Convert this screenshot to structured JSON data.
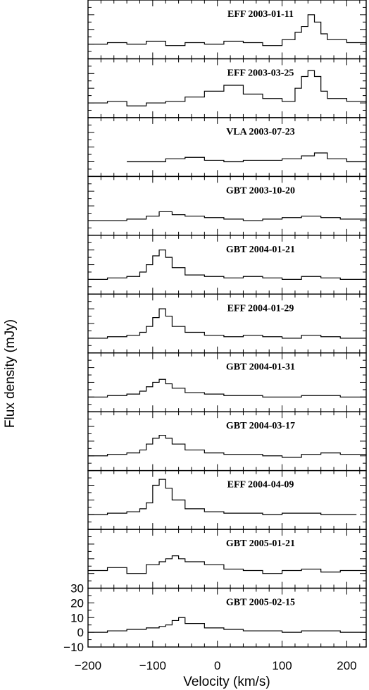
{
  "chart_data": {
    "type": "line",
    "xlabel": "Velocity (km/s)",
    "ylabel": "Flux density (mJy)",
    "xlim": [
      -200,
      230
    ],
    "xticks": [
      "−200",
      "−100",
      "0",
      "100",
      "200"
    ],
    "xtick_values": [
      -200,
      -100,
      0,
      100,
      200
    ],
    "ylim": [
      -10,
      30
    ],
    "yticks": [
      "30",
      "20",
      "10",
      "0",
      "−10"
    ],
    "ytick_values": [
      30,
      20,
      10,
      0,
      -10
    ],
    "style": "step",
    "grid": false,
    "panels": [
      {
        "label": "EFF 2003-01-11",
        "x": [
          -200,
          -170,
          -140,
          -110,
          -80,
          -50,
          -20,
          10,
          40,
          70,
          100,
          120,
          130,
          140,
          150,
          160,
          170,
          200,
          230
        ],
        "y": [
          0,
          1,
          0,
          2,
          -1,
          1,
          0,
          2,
          1,
          -1,
          3,
          8,
          12,
          20,
          15,
          7,
          3,
          1,
          0
        ]
      },
      {
        "label": "EFF 2003-03-25",
        "x": [
          -200,
          -170,
          -140,
          -110,
          -80,
          -50,
          -20,
          10,
          40,
          70,
          100,
          120,
          130,
          140,
          150,
          160,
          170,
          200,
          230
        ],
        "y": [
          0,
          1,
          -2,
          0,
          1,
          4,
          8,
          12,
          6,
          3,
          1,
          10,
          18,
          22,
          18,
          8,
          3,
          1,
          0
        ]
      },
      {
        "label": "VLA 2003-07-23",
        "x": [
          -140,
          -110,
          -80,
          -50,
          -20,
          10,
          40,
          70,
          100,
          130,
          150,
          170,
          200,
          230
        ],
        "y": [
          0,
          0,
          2,
          3,
          1,
          0,
          1,
          1,
          2,
          4,
          6,
          2,
          0,
          0
        ]
      },
      {
        "label": "GBT 2003-10-20",
        "x": [
          -200,
          -170,
          -140,
          -110,
          -90,
          -70,
          -50,
          -20,
          10,
          40,
          70,
          100,
          130,
          160,
          190,
          230
        ],
        "y": [
          0,
          0,
          1,
          3,
          6,
          4,
          3,
          2,
          1,
          0,
          1,
          2,
          3,
          2,
          1,
          0
        ]
      },
      {
        "label": "GBT 2004-01-21",
        "x": [
          -200,
          -170,
          -140,
          -120,
          -110,
          -100,
          -90,
          -80,
          -70,
          -50,
          -20,
          10,
          40,
          70,
          100,
          130,
          160,
          190,
          230
        ],
        "y": [
          0,
          1,
          2,
          5,
          10,
          16,
          20,
          15,
          8,
          3,
          2,
          1,
          2,
          1,
          0,
          2,
          1,
          0,
          0
        ]
      },
      {
        "label": "EFF 2004-01-29",
        "x": [
          -200,
          -170,
          -140,
          -120,
          -110,
          -100,
          -90,
          -80,
          -70,
          -50,
          -20,
          10,
          40,
          70,
          100,
          130,
          160,
          190,
          230
        ],
        "y": [
          0,
          1,
          2,
          4,
          8,
          14,
          20,
          15,
          8,
          4,
          2,
          1,
          2,
          1,
          0,
          2,
          1,
          0,
          0
        ]
      },
      {
        "label": "GBT 2004-01-31",
        "x": [
          -200,
          -170,
          -140,
          -120,
          -110,
          -100,
          -90,
          -80,
          -70,
          -50,
          -20,
          10,
          40,
          70,
          100,
          130,
          160,
          190,
          230
        ],
        "y": [
          0,
          1,
          2,
          4,
          7,
          10,
          12,
          9,
          6,
          3,
          2,
          1,
          1,
          0,
          0,
          1,
          1,
          0,
          0
        ]
      },
      {
        "label": "GBT 2004-03-17",
        "x": [
          -200,
          -170,
          -140,
          -120,
          -110,
          -100,
          -90,
          -80,
          -70,
          -50,
          -20,
          10,
          40,
          70,
          100,
          130,
          160,
          190,
          230
        ],
        "y": [
          0,
          1,
          2,
          4,
          8,
          12,
          14,
          12,
          8,
          4,
          2,
          1,
          1,
          0,
          -1,
          1,
          2,
          1,
          0
        ]
      },
      {
        "label": "EFF 2004-04-09",
        "x": [
          -200,
          -170,
          -140,
          -120,
          -110,
          -100,
          -90,
          -80,
          -70,
          -50,
          -20,
          10,
          40,
          70,
          100,
          130,
          160,
          190,
          215
        ],
        "y": [
          0,
          1,
          2,
          4,
          8,
          20,
          24,
          18,
          10,
          4,
          2,
          1,
          1,
          0,
          1,
          1,
          0,
          0,
          0
        ]
      },
      {
        "label": "GBT 2005-01-21",
        "x": [
          -200,
          -170,
          -140,
          -110,
          -90,
          -80,
          -70,
          -60,
          -50,
          -20,
          10,
          40,
          70,
          100,
          130,
          160,
          190,
          230
        ],
        "y": [
          2,
          4,
          0,
          6,
          8,
          10,
          12,
          10,
          8,
          6,
          3,
          2,
          0,
          2,
          3,
          1,
          2,
          0
        ]
      },
      {
        "label": "GBT 2005-02-15",
        "x": [
          -200,
          -170,
          -140,
          -110,
          -90,
          -80,
          -70,
          -60,
          -50,
          -20,
          10,
          40,
          70,
          100,
          130,
          160,
          190,
          230
        ],
        "y": [
          0,
          1,
          2,
          3,
          4,
          5,
          8,
          10,
          6,
          3,
          2,
          1,
          1,
          0,
          1,
          1,
          0,
          0
        ]
      }
    ]
  }
}
